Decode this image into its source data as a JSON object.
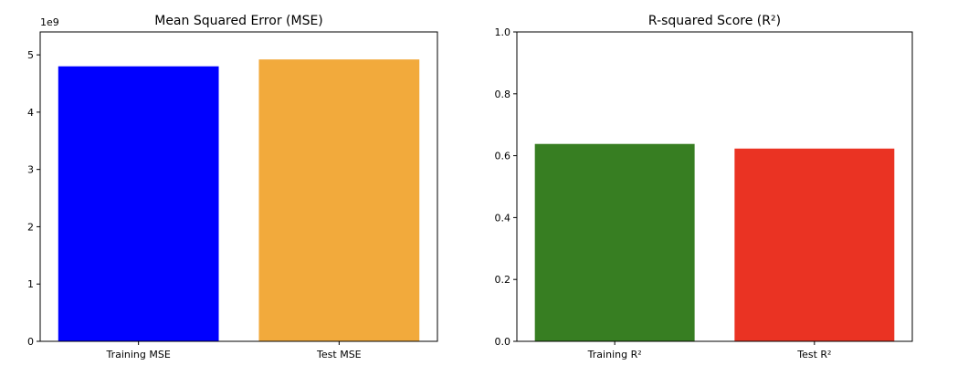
{
  "chart_data": [
    {
      "type": "bar",
      "title": "Mean Squared Error (MSE)",
      "xlabel": "",
      "ylabel": "",
      "y_multiplier_label": "1e9",
      "ylim": [
        0,
        5.4
      ],
      "yticks": [
        0,
        1,
        2,
        3,
        4,
        5
      ],
      "ytick_labels": [
        "0",
        "1",
        "2",
        "3",
        "4",
        "5"
      ],
      "categories": [
        "Training MSE",
        "Test MSE"
      ],
      "values": [
        4.8,
        4.92
      ],
      "colors": [
        "#0000ff",
        "#f2aa3c"
      ],
      "grid": false
    },
    {
      "type": "bar",
      "title": "R-squared Score (R²)",
      "xlabel": "",
      "ylabel": "",
      "ylim": [
        0,
        1.0
      ],
      "yticks": [
        0.0,
        0.2,
        0.4,
        0.6,
        0.8,
        1.0
      ],
      "ytick_labels": [
        "0.0",
        "0.2",
        "0.4",
        "0.6",
        "0.8",
        "1.0"
      ],
      "categories": [
        "Training R²",
        "Test R²"
      ],
      "values": [
        0.638,
        0.623
      ],
      "colors": [
        "#377e22",
        "#ea3323"
      ],
      "grid": false
    }
  ]
}
